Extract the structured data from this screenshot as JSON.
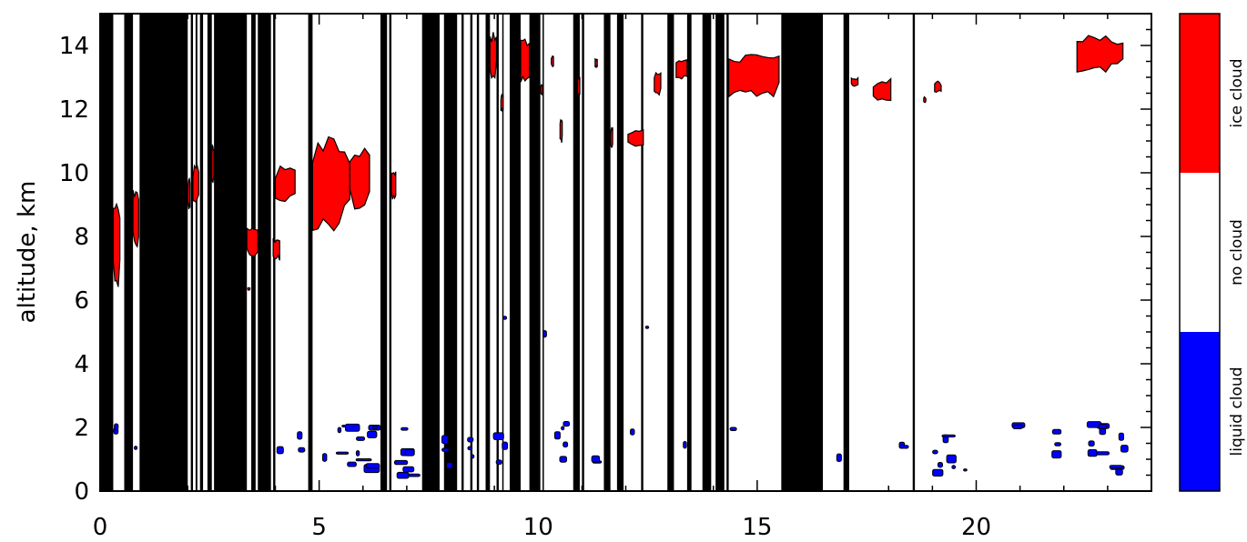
{
  "chart_data": {
    "type": "heatmap",
    "title": "",
    "xlabel": "",
    "ylabel": "altitude, km",
    "xlim": [
      0,
      24
    ],
    "ylim": [
      0,
      15
    ],
    "x_ticks": [
      0,
      5,
      10,
      15,
      20
    ],
    "y_ticks": [
      0,
      2,
      4,
      6,
      8,
      10,
      12,
      14
    ],
    "x_tick_labels": [
      "0",
      "5",
      "10",
      "15",
      "20"
    ],
    "y_tick_labels": [
      "0",
      "2",
      "4",
      "6",
      "8",
      "10",
      "12",
      "14"
    ],
    "categories": [
      {
        "name": "liquid cloud",
        "color": "#0000ff"
      },
      {
        "name": "no cloud",
        "color": "#ffffff"
      },
      {
        "name": "ice cloud",
        "color": "#ff0000"
      }
    ],
    "legend_position": "right",
    "no_data_color": "#000000",
    "no_data_intervals": [
      [
        0.0,
        0.3
      ],
      [
        0.55,
        0.75
      ],
      [
        0.9,
        2.0
      ],
      [
        2.07,
        2.12
      ],
      [
        2.18,
        2.22
      ],
      [
        2.28,
        2.35
      ],
      [
        2.45,
        2.55
      ],
      [
        2.6,
        3.35
      ],
      [
        3.45,
        3.55
      ],
      [
        3.6,
        3.9
      ],
      [
        3.95,
        4.0
      ],
      [
        4.75,
        4.85
      ],
      [
        6.4,
        6.55
      ],
      [
        6.6,
        6.65
      ],
      [
        7.35,
        7.75
      ],
      [
        7.85,
        8.15
      ],
      [
        8.25,
        8.3
      ],
      [
        8.45,
        8.5
      ],
      [
        8.6,
        8.65
      ],
      [
        8.8,
        8.9
      ],
      [
        9.05,
        9.1
      ],
      [
        9.18,
        9.2
      ],
      [
        9.35,
        9.6
      ],
      [
        9.8,
        10.05
      ],
      [
        10.1,
        10.12
      ],
      [
        10.8,
        10.95
      ],
      [
        11.0,
        11.05
      ],
      [
        11.5,
        11.65
      ],
      [
        11.8,
        11.95
      ],
      [
        12.35,
        12.4
      ],
      [
        12.95,
        13.1
      ],
      [
        13.4,
        13.5
      ],
      [
        13.75,
        13.95
      ],
      [
        14.05,
        14.25
      ],
      [
        14.3,
        14.35
      ],
      [
        15.55,
        16.5
      ],
      [
        16.97,
        17.1
      ],
      [
        18.55,
        18.6
      ]
    ],
    "ice_cloud_regions": [
      {
        "x": [
          0.3,
          0.45
        ],
        "y": [
          6.0,
          9.3
        ]
      },
      {
        "x": [
          0.75,
          0.88
        ],
        "y": [
          7.5,
          9.6
        ]
      },
      {
        "x": [
          2.0,
          2.05
        ],
        "y": [
          8.8,
          9.9
        ]
      },
      {
        "x": [
          2.12,
          2.25
        ],
        "y": [
          8.9,
          10.3
        ]
      },
      {
        "x": [
          2.55,
          2.6
        ],
        "y": [
          9.6,
          11.0
        ]
      },
      {
        "x": [
          3.37,
          3.42
        ],
        "y": [
          6.3,
          6.4
        ]
      },
      {
        "x": [
          3.35,
          3.6
        ],
        "y": [
          7.3,
          8.4
        ]
      },
      {
        "x": [
          3.95,
          4.1
        ],
        "y": [
          7.2,
          8.0
        ]
      },
      {
        "x": [
          4.0,
          4.45
        ],
        "y": [
          9.0,
          10.3
        ]
      },
      {
        "x": [
          4.85,
          5.7
        ],
        "y": [
          7.9,
          11.4
        ]
      },
      {
        "x": [
          5.7,
          6.15
        ],
        "y": [
          8.7,
          10.9
        ]
      },
      {
        "x": [
          6.65,
          6.75
        ],
        "y": [
          9.1,
          10.2
        ]
      },
      {
        "x": [
          8.9,
          9.05
        ],
        "y": [
          12.9,
          14.5
        ]
      },
      {
        "x": [
          9.6,
          9.8
        ],
        "y": [
          12.6,
          14.3
        ]
      },
      {
        "x": [
          9.15,
          9.2
        ],
        "y": [
          11.9,
          12.5
        ]
      },
      {
        "x": [
          10.05,
          10.1
        ],
        "y": [
          12.4,
          12.8
        ]
      },
      {
        "x": [
          10.3,
          10.35
        ],
        "y": [
          13.3,
          13.7
        ]
      },
      {
        "x": [
          10.5,
          10.55
        ],
        "y": [
          10.9,
          11.7
        ]
      },
      {
        "x": [
          10.9,
          10.95
        ],
        "y": [
          12.3,
          13.1
        ]
      },
      {
        "x": [
          11.3,
          11.35
        ],
        "y": [
          13.3,
          13.6
        ]
      },
      {
        "x": [
          11.65,
          11.7
        ],
        "y": [
          10.7,
          11.5
        ]
      },
      {
        "x": [
          12.05,
          12.4
        ],
        "y": [
          10.8,
          11.4
        ]
      },
      {
        "x": [
          12.65,
          12.8
        ],
        "y": [
          12.4,
          13.2
        ]
      },
      {
        "x": [
          13.15,
          13.4
        ],
        "y": [
          12.9,
          13.6
        ]
      },
      {
        "x": [
          14.35,
          15.5
        ],
        "y": [
          12.3,
          13.8
        ]
      },
      {
        "x": [
          17.15,
          17.3
        ],
        "y": [
          12.7,
          13.0
        ]
      },
      {
        "x": [
          17.65,
          18.05
        ],
        "y": [
          12.2,
          13.0
        ]
      },
      {
        "x": [
          18.8,
          18.85
        ],
        "y": [
          12.2,
          12.4
        ]
      },
      {
        "x": [
          19.05,
          19.2
        ],
        "y": [
          12.5,
          12.9
        ]
      },
      {
        "x": [
          22.3,
          23.35
        ],
        "y": [
          13.1,
          14.4
        ]
      }
    ],
    "liquid_cloud_regions": [
      {
        "x": [
          0.3,
          0.5
        ],
        "y": [
          1.0,
          2.2
        ]
      },
      {
        "x": [
          0.75,
          0.85
        ],
        "y": [
          1.3,
          2.1
        ]
      },
      {
        "x": [
          4.0,
          4.2
        ],
        "y": [
          1.0,
          2.0
        ]
      },
      {
        "x": [
          4.45,
          4.75
        ],
        "y": [
          0.8,
          1.9
        ]
      },
      {
        "x": [
          5.05,
          5.25
        ],
        "y": [
          0.5,
          1.4
        ]
      },
      {
        "x": [
          5.35,
          6.45
        ],
        "y": [
          0.4,
          2.2
        ]
      },
      {
        "x": [
          6.7,
          7.35
        ],
        "y": [
          0.3,
          2.0
        ]
      },
      {
        "x": [
          7.8,
          8.1
        ],
        "y": [
          0.3,
          1.8
        ]
      },
      {
        "x": [
          8.3,
          8.6
        ],
        "y": [
          0.5,
          2.1
        ]
      },
      {
        "x": [
          8.95,
          9.3
        ],
        "y": [
          0.8,
          2.1
        ]
      },
      {
        "x": [
          9.2,
          9.25
        ],
        "y": [
          5.2,
          5.5
        ]
      },
      {
        "x": [
          10.1,
          10.15
        ],
        "y": [
          4.8,
          5.2
        ]
      },
      {
        "x": [
          10.35,
          10.8
        ],
        "y": [
          0.8,
          2.4
        ]
      },
      {
        "x": [
          11.2,
          11.5
        ],
        "y": [
          0.3,
          1.3
        ]
      },
      {
        "x": [
          12.1,
          12.2
        ],
        "y": [
          1.5,
          2.0
        ]
      },
      {
        "x": [
          12.45,
          12.5
        ],
        "y": [
          5.1,
          5.3
        ]
      },
      {
        "x": [
          13.25,
          13.4
        ],
        "y": [
          1.1,
          2.2
        ]
      },
      {
        "x": [
          14.35,
          14.55
        ],
        "y": [
          1.8,
          2.1
        ]
      },
      {
        "x": [
          16.8,
          16.95
        ],
        "y": [
          0.6,
          1.3
        ]
      },
      {
        "x": [
          18.2,
          18.55
        ],
        "y": [
          0.5,
          1.6
        ]
      },
      {
        "x": [
          19.0,
          19.8
        ],
        "y": [
          0.4,
          2.0
        ]
      },
      {
        "x": [
          20.5,
          21.2
        ],
        "y": [
          1.9,
          2.3
        ]
      },
      {
        "x": [
          21.7,
          22.0
        ],
        "y": [
          0.6,
          2.1
        ]
      },
      {
        "x": [
          22.5,
          23.5
        ],
        "y": [
          0.5,
          2.3
        ]
      }
    ]
  }
}
